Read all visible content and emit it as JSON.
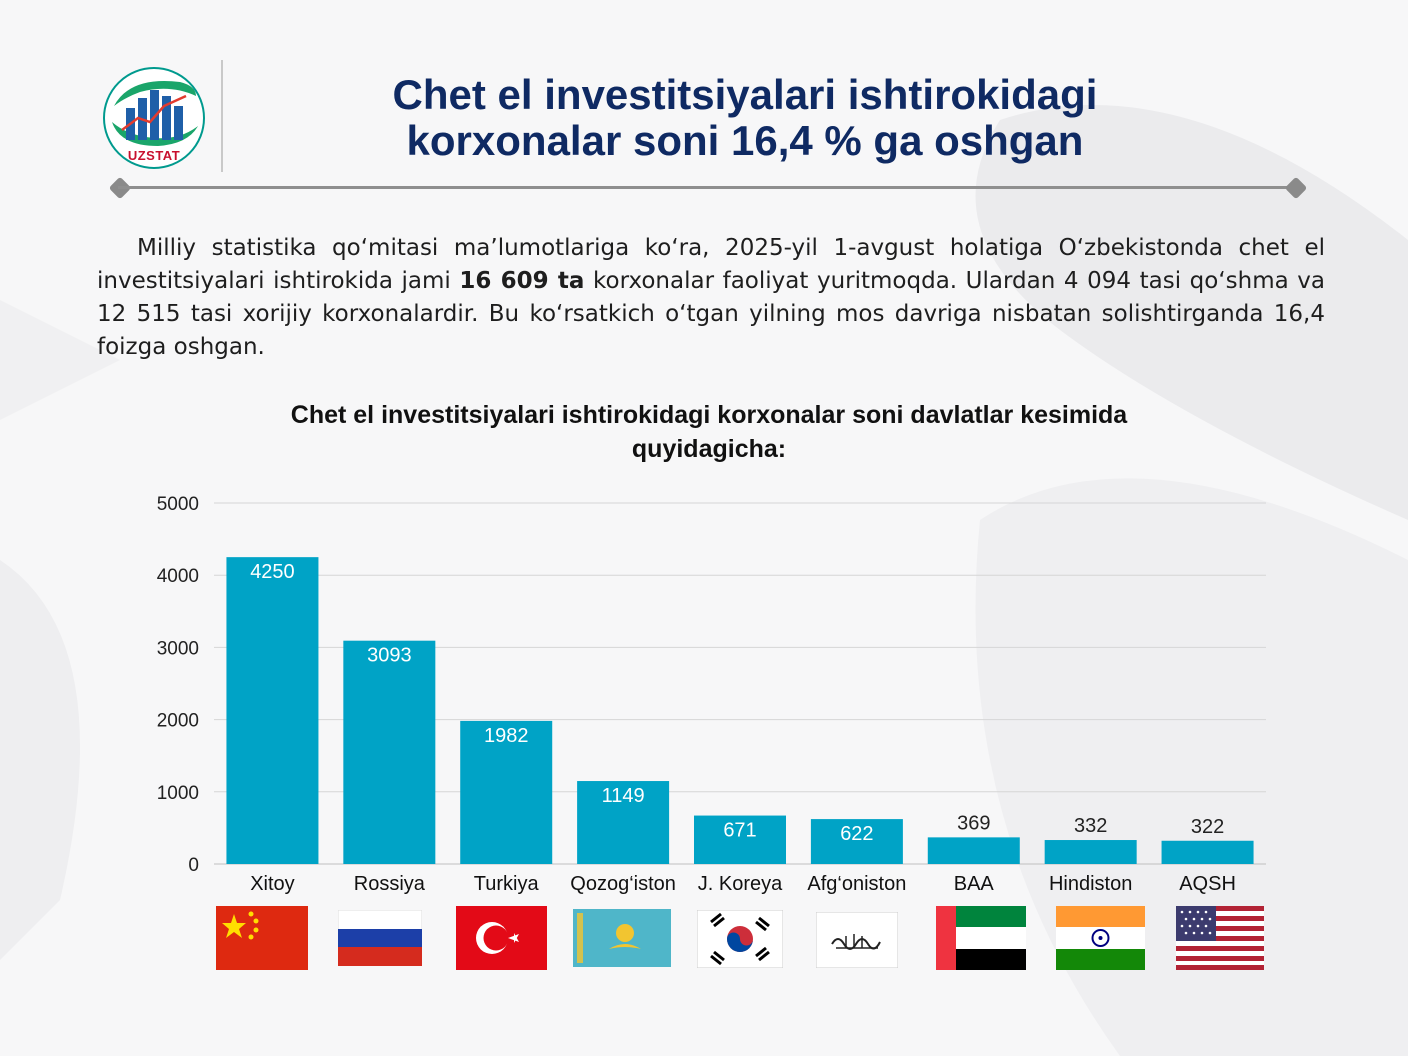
{
  "header": {
    "logo_text": "UZSTAT",
    "title_line1": "Chet el investitsiyalari ishtirokidagi",
    "title_line2": "korxonalar soni 16,4 % ga oshgan"
  },
  "intro": {
    "part1": "Milliy statistika qo‘mitasi ma’lumotlariga ko‘ra, 2025-yil 1-avgust holatiga O‘zbekistonda chet el investitsiyalari ishtirokida jami ",
    "bold": "16 609 ta",
    "part2": " korxonalar faoliyat yuritmoqda. Ulardan 4 094 tasi qo‘shma va 12 515 tasi xorijiy korxonalardir. Bu ko‘rsatkich o‘tgan yilning mos davriga nisbatan solishtirganda 16,4 foizga oshgan."
  },
  "chart_data": {
    "type": "bar",
    "title_line1": "Chet el investitsiyalari ishtirokidagi korxonalar soni davlatlar kesimida",
    "title_line2": "quyidagicha:",
    "categories": [
      "Xitoy",
      "Rossiya",
      "Turkiya",
      "Qozog‘iston",
      "J. Koreya",
      "Afg‘oniston",
      "BAA",
      "Hindiston",
      "AQSH"
    ],
    "values": [
      4250,
      3093,
      1982,
      1149,
      671,
      622,
      369,
      332,
      322
    ],
    "value_labels": [
      "4250",
      "3093",
      "1982",
      "1149",
      "671",
      "622",
      "369",
      "332",
      "322"
    ],
    "yticks": [
      0,
      1000,
      2000,
      3000,
      4000,
      5000
    ],
    "ytick_labels": [
      "0",
      "1000",
      "2000",
      "3000",
      "4000",
      "5000"
    ],
    "ylim": [
      0,
      5000
    ],
    "grid": true,
    "bar_color": "#00a3c6",
    "flags": [
      "china-flag",
      "russia-flag",
      "turkey-flag",
      "kazakhstan-flag",
      "south-korea-flag",
      "afghanistan-flag",
      "uae-flag",
      "india-flag",
      "usa-flag"
    ]
  }
}
